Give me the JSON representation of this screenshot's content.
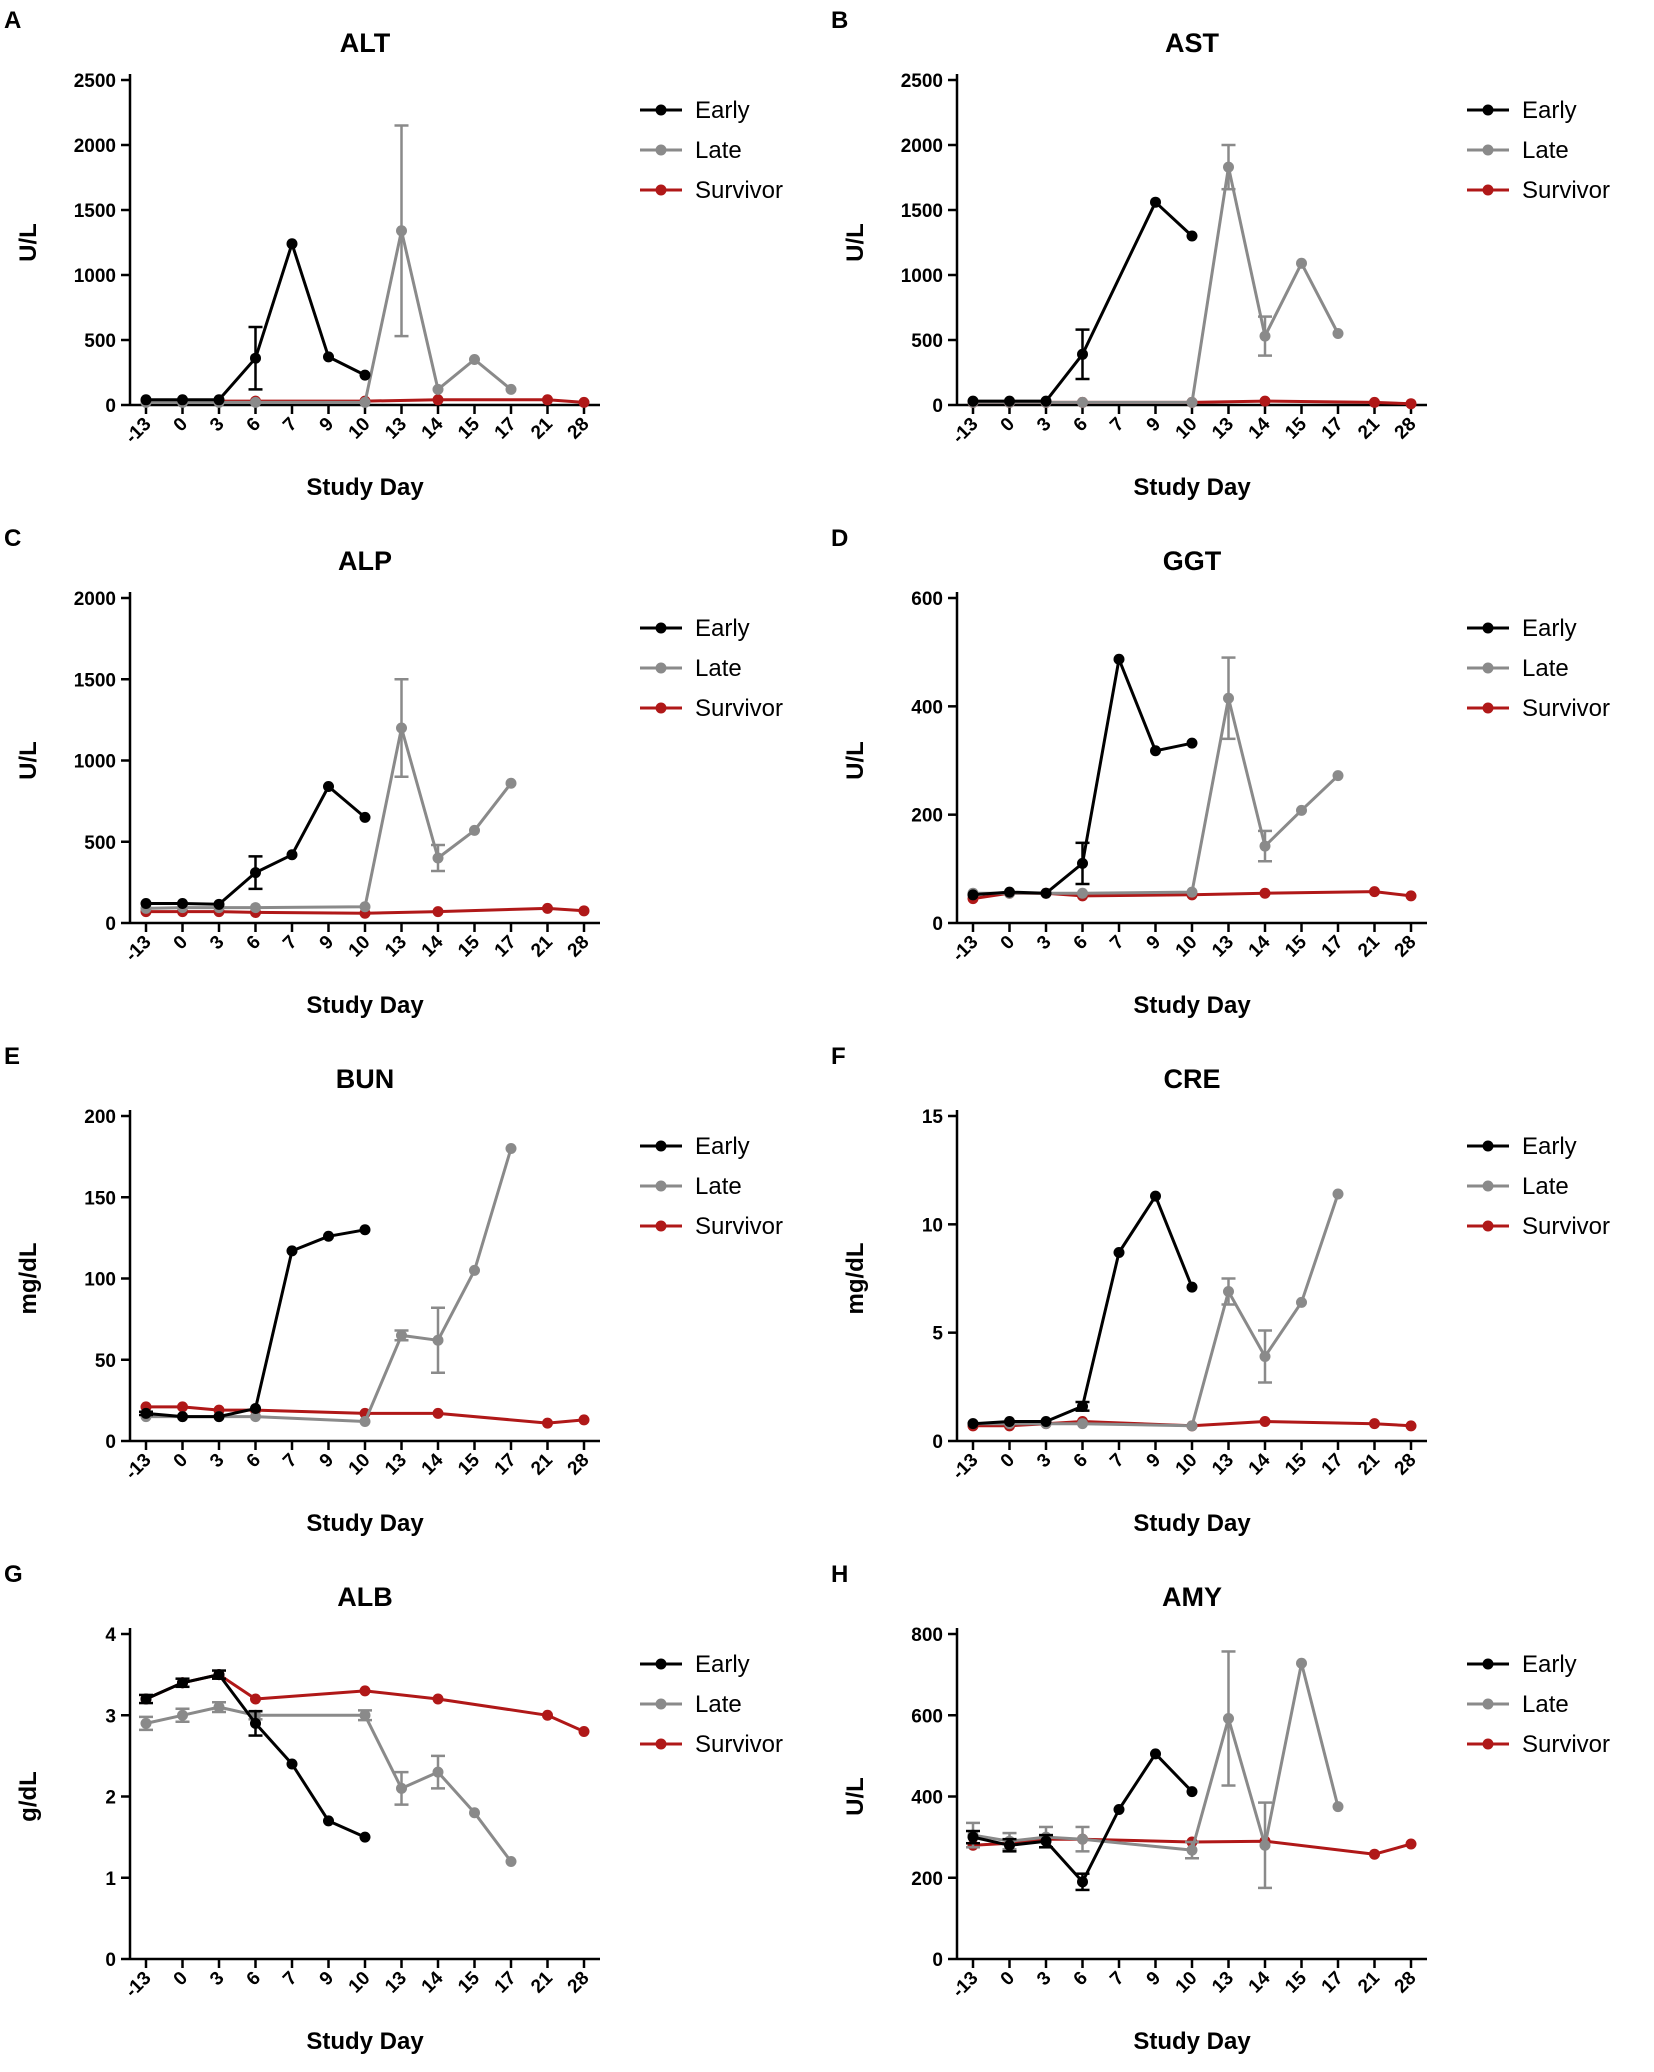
{
  "figure": {
    "xlabel": "Study Day",
    "day_ticks": [
      "-13",
      "0",
      "3",
      "6",
      "7",
      "9",
      "10",
      "13",
      "14",
      "15",
      "17",
      "21",
      "28"
    ],
    "legend": [
      "Early",
      "Late",
      "Survivor"
    ],
    "colors": {
      "Early": "#000000",
      "Late": "#8a8a8a",
      "Survivor": "#b01818"
    }
  },
  "chart_data": [
    {
      "letter": "A",
      "type": "line",
      "title": "ALT",
      "ylabel": "U/L",
      "xlabel": "Study Day",
      "categories": [
        "-13",
        "0",
        "3",
        "6",
        "7",
        "9",
        "10",
        "13",
        "14",
        "15",
        "17",
        "21",
        "28"
      ],
      "ylim": [
        0,
        2500
      ],
      "yticks": [
        0,
        500,
        1000,
        1500,
        2000,
        2500
      ],
      "series": [
        {
          "name": "Early",
          "values": [
            40,
            40,
            40,
            360,
            1240,
            370,
            230,
            null,
            null,
            null,
            null,
            null,
            null
          ],
          "errors": [
            0,
            0,
            0,
            240,
            0,
            0,
            0,
            null,
            null,
            null,
            null,
            null,
            null
          ]
        },
        {
          "name": "Late",
          "values": [
            20,
            20,
            20,
            20,
            null,
            null,
            20,
            1340,
            120,
            350,
            120,
            null,
            null
          ],
          "errors": [
            0,
            0,
            0,
            0,
            null,
            null,
            0,
            810,
            0,
            0,
            0,
            null,
            null
          ]
        },
        {
          "name": "Survivor",
          "values": [
            30,
            30,
            30,
            30,
            null,
            null,
            30,
            null,
            40,
            null,
            null,
            40,
            20
          ],
          "errors": [
            0,
            0,
            0,
            0,
            null,
            null,
            0,
            null,
            0,
            null,
            null,
            0,
            0
          ]
        }
      ]
    },
    {
      "letter": "B",
      "type": "line",
      "title": "AST",
      "ylabel": "U/L",
      "xlabel": "Study Day",
      "categories": [
        "-13",
        "0",
        "3",
        "6",
        "7",
        "9",
        "10",
        "13",
        "14",
        "15",
        "17",
        "21",
        "28"
      ],
      "ylim": [
        0,
        2500
      ],
      "yticks": [
        0,
        500,
        1000,
        1500,
        2000,
        2500
      ],
      "series": [
        {
          "name": "Early",
          "values": [
            30,
            30,
            30,
            390,
            null,
            1560,
            1300,
            null,
            null,
            null,
            null,
            null,
            null
          ],
          "errors": [
            0,
            0,
            0,
            190,
            null,
            0,
            0,
            null,
            null,
            null,
            null,
            null,
            null
          ]
        },
        {
          "name": "Late",
          "values": [
            20,
            20,
            20,
            20,
            null,
            null,
            20,
            1830,
            530,
            1090,
            550,
            null,
            null
          ],
          "errors": [
            0,
            0,
            0,
            0,
            null,
            null,
            0,
            170,
            150,
            0,
            0,
            null,
            null
          ]
        },
        {
          "name": "Survivor",
          "values": [
            20,
            20,
            20,
            20,
            null,
            null,
            20,
            null,
            30,
            null,
            null,
            20,
            10
          ],
          "errors": [
            0,
            0,
            0,
            0,
            null,
            null,
            0,
            null,
            0,
            null,
            null,
            0,
            0
          ]
        }
      ]
    },
    {
      "letter": "C",
      "type": "line",
      "title": "ALP",
      "ylabel": "U/L",
      "xlabel": "Study Day",
      "categories": [
        "-13",
        "0",
        "3",
        "6",
        "7",
        "9",
        "10",
        "13",
        "14",
        "15",
        "17",
        "21",
        "28"
      ],
      "ylim": [
        0,
        2000
      ],
      "yticks": [
        0,
        500,
        1000,
        1500,
        2000
      ],
      "series": [
        {
          "name": "Early",
          "values": [
            120,
            120,
            115,
            310,
            420,
            840,
            650,
            null,
            null,
            null,
            null,
            null,
            null
          ],
          "errors": [
            0,
            0,
            0,
            100,
            0,
            0,
            0,
            null,
            null,
            null,
            null,
            null,
            null
          ]
        },
        {
          "name": "Late",
          "values": [
            90,
            95,
            95,
            95,
            null,
            null,
            100,
            1200,
            400,
            570,
            860,
            null,
            null
          ],
          "errors": [
            0,
            0,
            0,
            0,
            null,
            null,
            0,
            300,
            80,
            0,
            0,
            null,
            null
          ]
        },
        {
          "name": "Survivor",
          "values": [
            70,
            70,
            70,
            65,
            null,
            null,
            60,
            null,
            70,
            null,
            null,
            90,
            75
          ],
          "errors": [
            0,
            0,
            0,
            0,
            null,
            null,
            0,
            null,
            0,
            null,
            null,
            0,
            0
          ]
        }
      ]
    },
    {
      "letter": "D",
      "type": "line",
      "title": "GGT",
      "ylabel": "U/L",
      "xlabel": "Study Day",
      "categories": [
        "-13",
        "0",
        "3",
        "6",
        "7",
        "9",
        "10",
        "13",
        "14",
        "15",
        "17",
        "21",
        "28"
      ],
      "ylim": [
        0,
        600
      ],
      "yticks": [
        0,
        200,
        400,
        600
      ],
      "series": [
        {
          "name": "Early",
          "values": [
            52,
            57,
            55,
            110,
            487,
            318,
            332,
            null,
            null,
            null,
            null,
            null,
            null
          ],
          "errors": [
            0,
            0,
            0,
            38,
            0,
            0,
            0,
            null,
            null,
            null,
            null,
            null,
            null
          ]
        },
        {
          "name": "Late",
          "values": [
            55,
            55,
            55,
            55,
            null,
            null,
            57,
            415,
            142,
            208,
            272,
            null,
            null
          ],
          "errors": [
            0,
            0,
            0,
            0,
            null,
            null,
            0,
            75,
            28,
            0,
            0,
            null,
            null
          ]
        },
        {
          "name": "Survivor",
          "values": [
            45,
            55,
            55,
            50,
            null,
            null,
            52,
            null,
            55,
            null,
            null,
            58,
            50
          ],
          "errors": [
            0,
            0,
            0,
            0,
            null,
            null,
            0,
            null,
            0,
            null,
            null,
            0,
            0
          ]
        }
      ]
    },
    {
      "letter": "E",
      "type": "line",
      "title": "BUN",
      "ylabel": "mg/dL",
      "xlabel": "Study Day",
      "categories": [
        "-13",
        "0",
        "3",
        "6",
        "7",
        "9",
        "10",
        "13",
        "14",
        "15",
        "17",
        "21",
        "28"
      ],
      "ylim": [
        0,
        200
      ],
      "yticks": [
        0,
        50,
        100,
        150,
        200
      ],
      "series": [
        {
          "name": "Early",
          "values": [
            17,
            15,
            15,
            20,
            117,
            126,
            130,
            null,
            null,
            null,
            null,
            null,
            null
          ],
          "errors": [
            1,
            0,
            0,
            0,
            0,
            0,
            0,
            null,
            null,
            null,
            null,
            null,
            null
          ]
        },
        {
          "name": "Late",
          "values": [
            15,
            15,
            15,
            15,
            null,
            null,
            12,
            65,
            62,
            105,
            180,
            null,
            null
          ],
          "errors": [
            0,
            0,
            0,
            0,
            null,
            null,
            0,
            3,
            20,
            0,
            0,
            null,
            null
          ]
        },
        {
          "name": "Survivor",
          "values": [
            21,
            21,
            19,
            19,
            null,
            null,
            17,
            null,
            17,
            null,
            null,
            11,
            13
          ],
          "errors": [
            0,
            0,
            0,
            0,
            null,
            null,
            0,
            null,
            0,
            null,
            null,
            0,
            0
          ]
        }
      ]
    },
    {
      "letter": "F",
      "type": "line",
      "title": "CRE",
      "ylabel": "mg/dL",
      "xlabel": "Study Day",
      "categories": [
        "-13",
        "0",
        "3",
        "6",
        "7",
        "9",
        "10",
        "13",
        "14",
        "15",
        "17",
        "21",
        "28"
      ],
      "ylim": [
        0,
        15
      ],
      "yticks": [
        0,
        5,
        10,
        15
      ],
      "series": [
        {
          "name": "Early",
          "values": [
            0.8,
            0.9,
            0.9,
            1.6,
            8.7,
            11.3,
            7.1,
            null,
            null,
            null,
            null,
            null,
            null
          ],
          "errors": [
            0,
            0,
            0,
            0.2,
            0,
            0,
            0,
            null,
            null,
            null,
            null,
            null,
            null
          ]
        },
        {
          "name": "Late",
          "values": [
            0.8,
            0.8,
            0.8,
            0.8,
            null,
            null,
            0.7,
            6.9,
            3.9,
            6.4,
            11.4,
            null,
            null
          ],
          "errors": [
            0,
            0,
            0,
            0,
            null,
            null,
            0,
            0.6,
            1.2,
            0,
            0,
            null,
            null
          ]
        },
        {
          "name": "Survivor",
          "values": [
            0.7,
            0.7,
            0.8,
            0.9,
            null,
            null,
            0.7,
            null,
            0.9,
            null,
            null,
            0.8,
            0.7
          ],
          "errors": [
            0,
            0,
            0,
            0,
            null,
            null,
            0,
            null,
            0,
            null,
            null,
            0,
            0
          ]
        }
      ]
    },
    {
      "letter": "G",
      "type": "line",
      "title": "ALB",
      "ylabel": "g/dL",
      "xlabel": "Study Day",
      "categories": [
        "-13",
        "0",
        "3",
        "6",
        "7",
        "9",
        "10",
        "13",
        "14",
        "15",
        "17",
        "21",
        "28"
      ],
      "ylim": [
        0,
        4
      ],
      "yticks": [
        0,
        1,
        2,
        3,
        4
      ],
      "series": [
        {
          "name": "Early",
          "values": [
            3.2,
            3.4,
            3.5,
            2.9,
            2.4,
            1.7,
            1.5,
            null,
            null,
            null,
            null,
            null,
            null
          ],
          "errors": [
            0.05,
            0.05,
            0.05,
            0.15,
            0,
            0,
            0,
            null,
            null,
            null,
            null,
            null,
            null
          ]
        },
        {
          "name": "Late",
          "values": [
            2.9,
            3.0,
            3.1,
            3.0,
            null,
            null,
            3.0,
            2.1,
            2.3,
            1.8,
            1.2,
            null,
            null
          ],
          "errors": [
            0.08,
            0.08,
            0.06,
            0.05,
            null,
            null,
            0.06,
            0.2,
            0.2,
            0,
            0,
            null,
            null
          ]
        },
        {
          "name": "Survivor",
          "values": [
            3.2,
            3.4,
            3.5,
            3.2,
            null,
            null,
            3.3,
            null,
            3.2,
            null,
            null,
            3.0,
            2.8
          ],
          "errors": [
            0,
            0,
            0,
            0,
            null,
            null,
            0,
            null,
            0,
            null,
            null,
            0,
            0
          ]
        }
      ]
    },
    {
      "letter": "H",
      "type": "line",
      "title": "AMY",
      "ylabel": "U/L",
      "xlabel": "Study Day",
      "categories": [
        "-13",
        "0",
        "3",
        "6",
        "7",
        "9",
        "10",
        "13",
        "14",
        "15",
        "17",
        "21",
        "28"
      ],
      "ylim": [
        0,
        800
      ],
      "yticks": [
        0,
        200,
        400,
        600,
        800
      ],
      "series": [
        {
          "name": "Early",
          "values": [
            300,
            280,
            290,
            190,
            368,
            505,
            412,
            null,
            null,
            null,
            null,
            null,
            null
          ],
          "errors": [
            15,
            15,
            15,
            20,
            0,
            0,
            0,
            null,
            null,
            null,
            null,
            null,
            null
          ]
        },
        {
          "name": "Late",
          "values": [
            305,
            290,
            300,
            295,
            null,
            null,
            268,
            592,
            280,
            728,
            375,
            null,
            null
          ],
          "errors": [
            30,
            20,
            25,
            30,
            null,
            null,
            20,
            165,
            105,
            0,
            0,
            null,
            null
          ]
        },
        {
          "name": "Survivor",
          "values": [
            280,
            285,
            295,
            295,
            null,
            null,
            288,
            null,
            290,
            null,
            null,
            258,
            283
          ],
          "errors": [
            0,
            0,
            0,
            0,
            null,
            null,
            0,
            null,
            0,
            null,
            null,
            0,
            0
          ]
        }
      ]
    }
  ]
}
